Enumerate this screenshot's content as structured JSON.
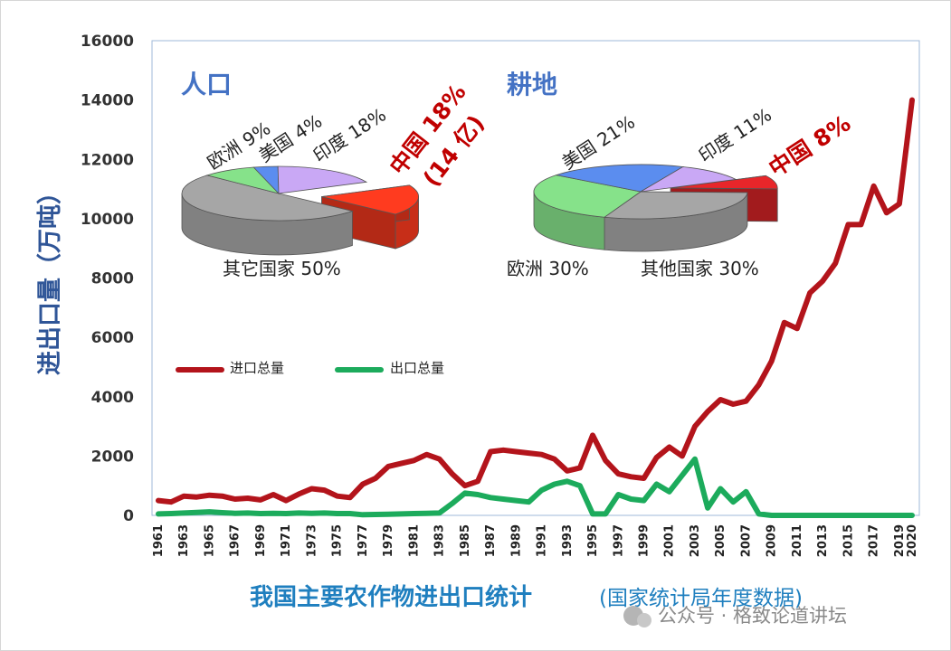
{
  "chart_data": [
    {
      "type": "line",
      "title": "",
      "xlabel": "",
      "ylabel": "进出口量（万吨）",
      "ylim": [
        0,
        16000
      ],
      "yticks": [
        0,
        2000,
        4000,
        6000,
        8000,
        10000,
        12000,
        14000,
        16000
      ],
      "xticks": [
        "1961",
        "1963",
        "1965",
        "1967",
        "1969",
        "1971",
        "1973",
        "1975",
        "1977",
        "1979",
        "1981",
        "1983",
        "1985",
        "1987",
        "1989",
        "1991",
        "1993",
        "1995",
        "1997",
        "1999",
        "2001",
        "2003",
        "2005",
        "2007",
        "2009",
        "2011",
        "2013",
        "2015",
        "2017",
        "2019",
        "2020"
      ],
      "grid": false,
      "legend": "middle-left",
      "x": [
        1961,
        1962,
        1963,
        1964,
        1965,
        1966,
        1967,
        1968,
        1969,
        1970,
        1971,
        1972,
        1973,
        1974,
        1975,
        1976,
        1977,
        1978,
        1979,
        1980,
        1981,
        1982,
        1983,
        1984,
        1985,
        1986,
        1987,
        1988,
        1989,
        1990,
        1991,
        1992,
        1993,
        1994,
        1995,
        1996,
        1997,
        1998,
        1999,
        2000,
        2001,
        2002,
        2003,
        2004,
        2005,
        2006,
        2007,
        2008,
        2009,
        2010,
        2011,
        2012,
        2013,
        2014,
        2015,
        2016,
        2017,
        2018,
        2019,
        2020
      ],
      "series": [
        {
          "name": "进口总量",
          "color": "#b3141b",
          "values": [
            500,
            450,
            650,
            620,
            680,
            650,
            550,
            580,
            520,
            700,
            500,
            720,
            900,
            850,
            650,
            600,
            1050,
            1250,
            1650,
            1750,
            1850,
            2050,
            1900,
            1400,
            1000,
            1150,
            2150,
            2200,
            2150,
            2100,
            2050,
            1900,
            1500,
            1600,
            2700,
            1850,
            1400,
            1300,
            1250,
            1950,
            2300,
            2000,
            3000,
            3500,
            3900,
            3750,
            3850,
            4400,
            5200,
            6500,
            6300,
            7500,
            7900,
            8500,
            9800,
            9800,
            11100,
            10200,
            10500,
            14000
          ]
        },
        {
          "name": "出口总量",
          "color": "#1cab5c",
          "values": [
            50,
            60,
            80,
            100,
            120,
            90,
            70,
            80,
            60,
            70,
            60,
            80,
            70,
            80,
            60,
            60,
            20,
            30,
            40,
            50,
            60,
            70,
            80,
            400,
            750,
            700,
            600,
            550,
            500,
            450,
            850,
            1050,
            1150,
            1000,
            50,
            50,
            700,
            550,
            500,
            1050,
            800,
            1350,
            1900,
            250,
            900,
            450,
            800,
            50,
            0,
            0,
            0,
            0,
            0,
            0,
            0,
            0,
            0,
            0,
            0,
            0
          ]
        }
      ]
    },
    {
      "type": "pie",
      "title": "人口",
      "slices": [
        {
          "label": "中国 18%(14亿)",
          "value": 18,
          "color": "#ff3b1f"
        },
        {
          "label": "其它国家 50%",
          "value": 50,
          "color": "#a6a6a6"
        },
        {
          "label": "欧洲 9%",
          "value": 9,
          "color": "#86e28a"
        },
        {
          "label": "美国 4%",
          "value": 4,
          "color": "#5b8def"
        },
        {
          "label": "印度 18%",
          "value": 18,
          "color": "#c9a8f5"
        }
      ]
    },
    {
      "type": "pie",
      "title": "耕地",
      "slices": [
        {
          "label": "中国 8%",
          "value": 8,
          "color": "#e8262a"
        },
        {
          "label": "其他国家 30%",
          "value": 30,
          "color": "#a6a6a6"
        },
        {
          "label": "欧洲 30%",
          "value": 30,
          "color": "#86e28a"
        },
        {
          "label": "美国 21%",
          "value": 21,
          "color": "#5b8def"
        },
        {
          "label": "印度 11%",
          "value": 11,
          "color": "#c9a8f5"
        }
      ]
    }
  ],
  "text": {
    "pie1_title": "人口",
    "pie1_europe": "欧洲 9%",
    "pie1_usa": "美国  4%",
    "pie1_india": "印度 18%",
    "pie1_china_line1": "中国 18%",
    "pie1_china_line2": "(14 亿)",
    "pie1_others": "其它国家 50%",
    "pie2_title": "耕地",
    "pie2_usa": "美国 21%",
    "pie2_india": "印度 11%",
    "pie2_china": "中国 8%",
    "pie2_europe": "欧洲 30%",
    "pie2_others": "其他国家 30%",
    "caption_main": "我国主要农作物进出口统计",
    "caption_sub": "(国家统计局年度数据)",
    "watermark": "公众号 · 格致论道讲坛"
  }
}
